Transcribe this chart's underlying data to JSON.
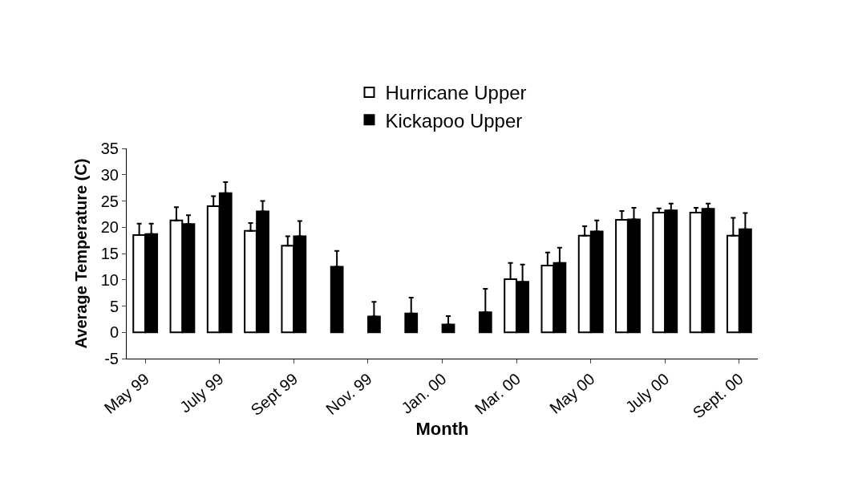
{
  "chart_data": {
    "type": "bar",
    "xlabel": "Month",
    "ylabel": "Average Temperature (C)",
    "categories": [
      "May 99",
      null,
      "July 99",
      null,
      "Sept 99",
      null,
      "Nov. 99",
      null,
      "Jan. 00",
      null,
      "Mar. 00",
      null,
      "May 00",
      null,
      "July 00",
      null,
      "Sept. 00"
    ],
    "series": [
      {
        "name": "Hurricane Upper",
        "color": "#ffffff",
        "values": [
          18.5,
          21.3,
          24,
          19.3,
          16.5,
          null,
          null,
          null,
          null,
          null,
          10.1,
          12.7,
          18.4,
          21.4,
          22.8,
          22.8,
          18.4
        ],
        "errors": [
          [
            18.5,
            20.7
          ],
          [
            21.3,
            23.8
          ],
          [
            24,
            25.9
          ],
          [
            19.3,
            20.8
          ],
          [
            16.5,
            18.3
          ],
          null,
          null,
          null,
          null,
          null,
          [
            10.1,
            13.2
          ],
          [
            12.7,
            15.2
          ],
          [
            18.4,
            20.2
          ],
          [
            21.4,
            23.1
          ],
          [
            22.8,
            23.6
          ],
          [
            22.8,
            23.7
          ],
          [
            18.4,
            21.8
          ]
        ]
      },
      {
        "name": "Kickapoo Upper",
        "color": "#000000",
        "values": [
          18.7,
          20.6,
          26.5,
          23,
          18.3,
          12.5,
          3,
          3.6,
          1.5,
          3.8,
          9.6,
          13.2,
          19.2,
          21.5,
          23.2,
          23.5,
          19.6
        ],
        "errors": [
          [
            18.7,
            20.7
          ],
          [
            20.6,
            22.3
          ],
          [
            26.5,
            28.6
          ],
          [
            23,
            25
          ],
          [
            18.3,
            21.2
          ],
          [
            12.5,
            15.5
          ],
          [
            3,
            5.8
          ],
          [
            3.6,
            6.6
          ],
          [
            1.5,
            3.1
          ],
          [
            3.8,
            8.3
          ],
          [
            9.6,
            12.9
          ],
          [
            13.2,
            16.1
          ],
          [
            19.2,
            21.3
          ],
          [
            21.5,
            23.7
          ],
          [
            23.2,
            24.5
          ],
          [
            23.5,
            24.5
          ],
          [
            19.6,
            22.7
          ]
        ]
      }
    ],
    "ylim": [
      -5,
      35
    ],
    "yticks": [
      -5,
      0,
      5,
      10,
      15,
      20,
      25,
      30,
      35
    ],
    "grid": false,
    "legend": "top"
  }
}
